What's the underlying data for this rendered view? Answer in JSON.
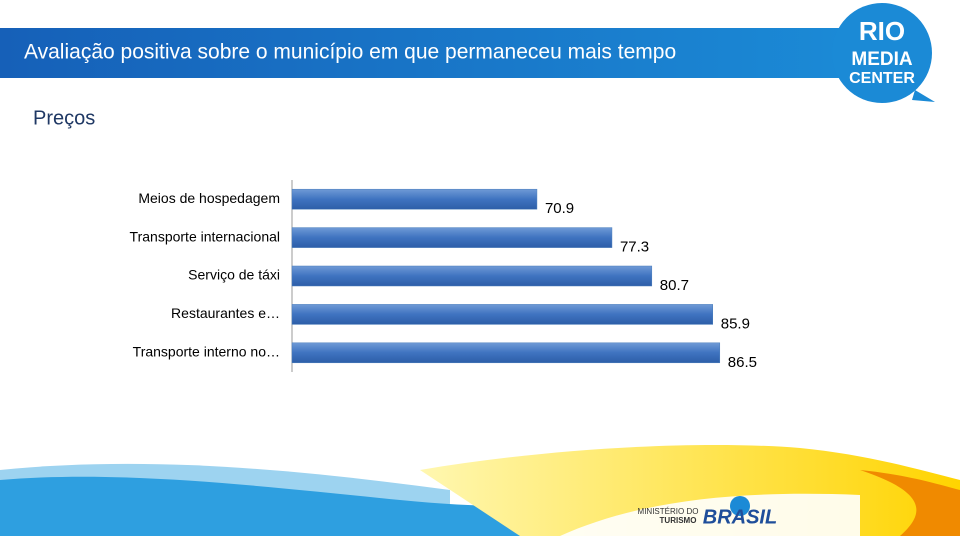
{
  "chart_data": {
    "type": "barh",
    "title": "Avaliação positiva sobre o município em que permaneceu mais tempo",
    "subtitle": "Preços",
    "categories": [
      "Meios de hospedagem",
      "Transporte internacional",
      "Serviço de táxi",
      "Restaurantes e…",
      "Transporte interno no…"
    ],
    "values": [
      70.9,
      77.3,
      80.7,
      85.9,
      86.5
    ],
    "color": "#4a7ebb",
    "xlim": [
      50,
      100
    ]
  },
  "logos": {
    "rio_media_center": [
      "RIO",
      "MEDIA",
      "CENTER"
    ],
    "ministerio": [
      "MINISTÉRIO DO",
      "TURISMO"
    ],
    "brasil": "BRASIL"
  }
}
